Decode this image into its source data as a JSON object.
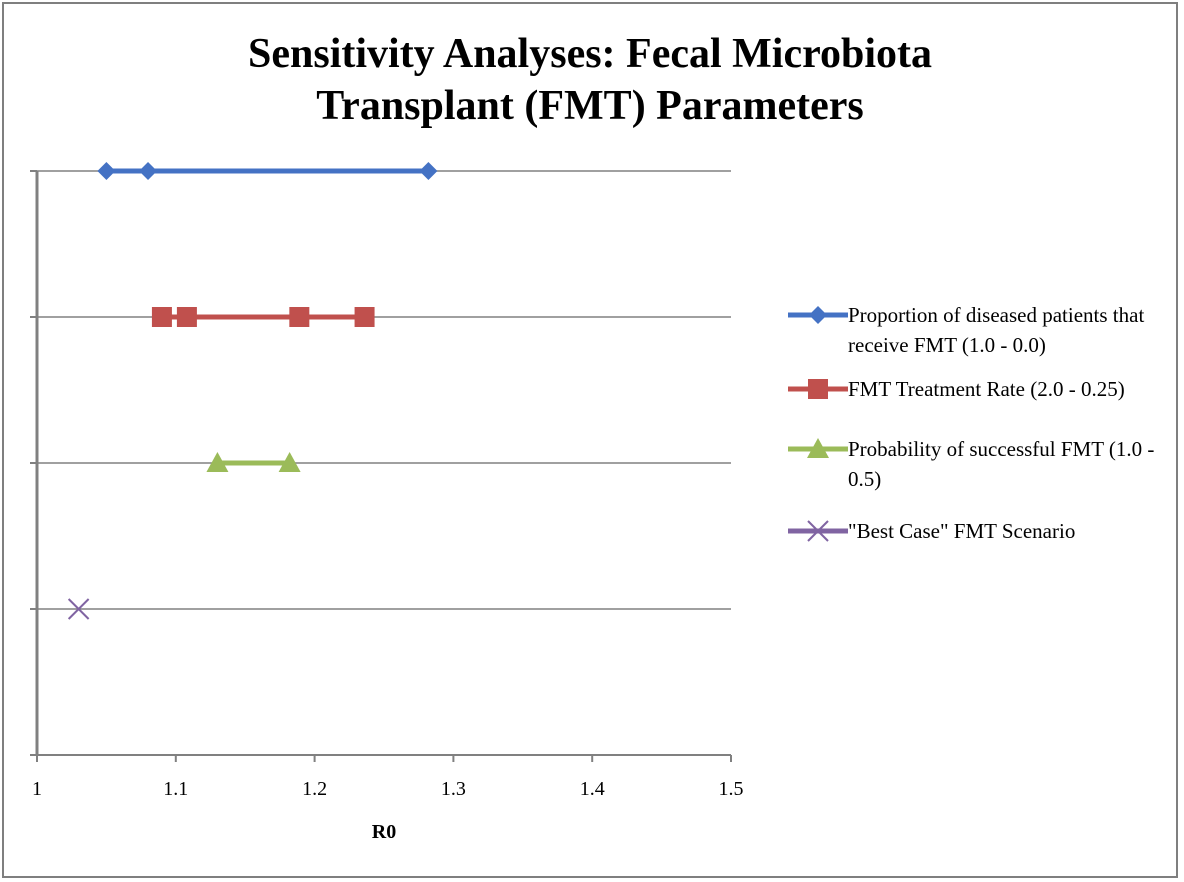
{
  "chart_data": {
    "type": "scatter",
    "title_lines": [
      "Sensitivity Analyses: Fecal Microbiota",
      "Transplant (FMT) Parameters"
    ],
    "xlabel": "R0",
    "ylabel": "",
    "xlim": [
      1,
      1.5
    ],
    "xticks": [
      "1",
      "1.1",
      "1.2",
      "1.3",
      "1.4",
      "1.5"
    ],
    "ylim": [
      0,
      4
    ],
    "grid": "horizontal",
    "legend_position": "right",
    "series": [
      {
        "name": "Proportion of diseased patients that receive FMT (1.0 - 0.0)",
        "color": "#4472c4",
        "marker": "diamond",
        "y": 4,
        "x": [
          1.05,
          1.08,
          1.282
        ]
      },
      {
        "name": "FMT Treatment Rate (2.0 - 0.25)",
        "color": "#c0504d",
        "marker": "square",
        "y": 3,
        "x": [
          1.09,
          1.108,
          1.189,
          1.236
        ]
      },
      {
        "name": "Probability of successful FMT (1.0 - 0.5)",
        "color": "#9bbb59",
        "marker": "triangle",
        "y": 2,
        "x": [
          1.13,
          1.182
        ]
      },
      {
        "name": "\"Best Case\" FMT Scenario",
        "color": "#8064a2",
        "marker": "x",
        "y": 1,
        "x": [
          1.03
        ]
      }
    ]
  }
}
